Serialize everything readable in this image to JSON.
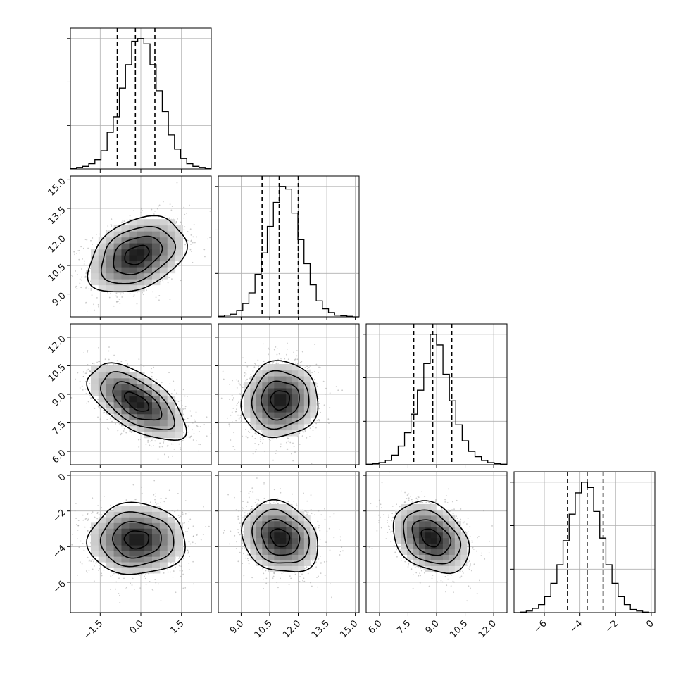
{
  "figure": {
    "kind": "corner-plot"
  },
  "chart_data": {
    "type": "corner",
    "grid": true,
    "dimensions": [
      {
        "xlim": [
          -2.6,
          2.6
        ],
        "ticks": [
          -1.5,
          0.0,
          1.5
        ],
        "tick_labels": [
          "−1.5",
          "0.0",
          "1.5"
        ],
        "quantiles": [
          -0.87,
          -0.2,
          0.52
        ]
      },
      {
        "xlim": [
          7.8,
          15.2
        ],
        "ticks": [
          9.0,
          10.5,
          12.0,
          13.5,
          15.0
        ],
        "tick_labels": [
          "9.0",
          "10.5",
          "12.0",
          "13.5",
          "15.0"
        ],
        "quantiles": [
          10.1,
          11.0,
          12.0
        ]
      },
      {
        "xlim": [
          5.3,
          12.7
        ],
        "ticks": [
          6.0,
          7.5,
          9.0,
          10.5,
          12.0
        ],
        "tick_labels": [
          "6.0",
          "7.5",
          "9.0",
          "10.5",
          "12.0"
        ],
        "quantiles": [
          7.8,
          8.8,
          9.8
        ]
      },
      {
        "xlim": [
          -7.7,
          0.2
        ],
        "ticks": [
          -6,
          -4,
          -2,
          0
        ],
        "tick_labels": [
          "−6",
          "−4",
          "−2",
          "0"
        ],
        "quantiles": [
          -4.7,
          -3.6,
          -2.7
        ]
      }
    ],
    "histograms": [
      {
        "dim": 0,
        "edges_lo": -2.6,
        "edges_hi": 2.6,
        "counts": [
          1,
          3,
          5,
          10,
          18,
          35,
          70,
          100,
          155,
          200,
          245,
          250,
          240,
          200,
          150,
          110,
          65,
          38,
          20,
          10,
          5,
          3,
          1
        ]
      },
      {
        "dim": 1,
        "edges_lo": 7.8,
        "edges_hi": 15.2,
        "counts": [
          1,
          3,
          5,
          12,
          25,
          45,
          80,
          120,
          170,
          215,
          245,
          240,
          195,
          145,
          100,
          60,
          30,
          15,
          8,
          3,
          2,
          1,
          0
        ]
      },
      {
        "dim": 2,
        "edges_lo": 5.3,
        "edges_hi": 12.7,
        "counts": [
          1,
          2,
          4,
          8,
          18,
          35,
          60,
          95,
          140,
          190,
          245,
          225,
          170,
          120,
          75,
          45,
          25,
          15,
          8,
          4,
          2,
          1
        ]
      },
      {
        "dim": 3,
        "edges_lo": -7.7,
        "edges_hi": 0.2,
        "counts": [
          0,
          1,
          3,
          8,
          15,
          30,
          55,
          90,
          135,
          185,
          225,
          245,
          235,
          190,
          140,
          90,
          55,
          30,
          15,
          6,
          3,
          1,
          0
        ]
      }
    ],
    "pairs": [
      {
        "x_dim": 0,
        "y_dim": 1,
        "center": [
          -0.15,
          11.05
        ],
        "sigma": [
          0.9,
          1.0
        ],
        "rho": 0.35
      },
      {
        "x_dim": 0,
        "y_dim": 2,
        "center": [
          -0.15,
          8.6
        ],
        "sigma": [
          0.9,
          1.0
        ],
        "rho": -0.6
      },
      {
        "x_dim": 1,
        "y_dim": 2,
        "center": [
          11.05,
          8.7
        ],
        "sigma": [
          1.0,
          1.0
        ],
        "rho": 0.05
      },
      {
        "x_dim": 0,
        "y_dim": 3,
        "center": [
          -0.15,
          -3.6
        ],
        "sigma": [
          0.9,
          1.0
        ],
        "rho": 0.0
      },
      {
        "x_dim": 1,
        "y_dim": 3,
        "center": [
          11.05,
          -3.5
        ],
        "sigma": [
          1.0,
          1.0
        ],
        "rho": -0.2
      },
      {
        "x_dim": 2,
        "y_dim": 3,
        "center": [
          8.7,
          -3.5
        ],
        "sigma": [
          1.0,
          1.0
        ],
        "rho": -0.3
      }
    ],
    "contour_levels_sigma": [
      0.5,
      1.0,
      1.5,
      2.0
    ],
    "colors": {
      "line": "#000000",
      "grid": "#b0b0b0",
      "points": "#a0a0a0",
      "density_max": "#000000"
    }
  }
}
